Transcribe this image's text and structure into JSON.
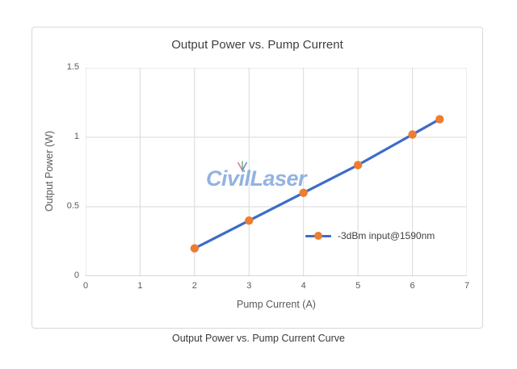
{
  "figure": {
    "caption": "Output Power vs. Pump Current Curve",
    "watermark": {
      "text": "CivilLaser",
      "color": "#7ca3da",
      "sparkle_colors": [
        "#e05a8c",
        "#4caf50",
        "#4472c4"
      ]
    }
  },
  "chart_data": {
    "type": "line",
    "title": "Output Power vs. Pump Current",
    "xlabel": "Pump Current (A)",
    "ylabel": "Output Power (W)",
    "xlim": [
      0,
      7
    ],
    "ylim": [
      0,
      1.5
    ],
    "xticks": [
      0,
      1,
      2,
      3,
      4,
      5,
      6,
      7
    ],
    "xtick_labels": [
      "0",
      "1",
      "2",
      "3",
      "4",
      "5",
      "6",
      "7"
    ],
    "yticks": [
      0,
      0.5,
      1,
      1.5
    ],
    "ytick_labels": [
      "0",
      "0.5",
      "1",
      "1.5"
    ],
    "grid": true,
    "legend_position": "inside lower right",
    "series": [
      {
        "name": "-3dBm input@1590nm",
        "x": [
          2,
          3,
          4,
          5,
          6,
          6.5
        ],
        "y": [
          0.2,
          0.4,
          0.6,
          0.8,
          1.02,
          1.13
        ],
        "line_color": "#3d6cc7",
        "marker_color": "#ed7d31"
      }
    ],
    "style": {
      "grid_color": "#d9d9d9",
      "axis_color": "#bfbfbf",
      "title_color": "#404040",
      "tick_color": "#595959"
    }
  }
}
